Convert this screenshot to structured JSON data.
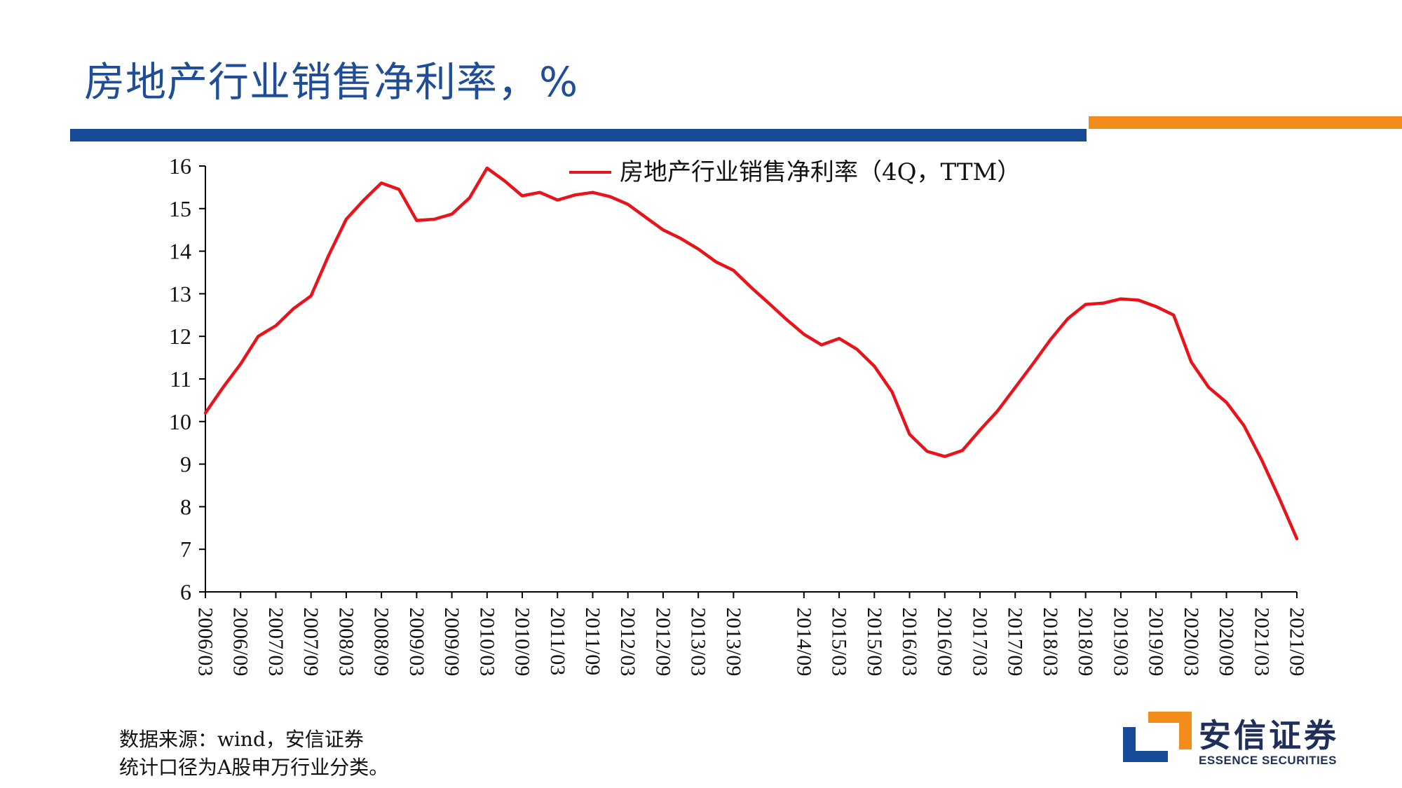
{
  "page": {
    "title": "房地产行业销售净利率，%",
    "source_line1": "数据来源：wind，安信证券",
    "source_line2": "统计口径为A股申万行业分类。",
    "logo_cn": "安信证券",
    "logo_en": "ESSENCE SECURITIES"
  },
  "colors": {
    "title": "#1f4e96",
    "blue_bar": "#174b97",
    "orange_bar": "#f28c1c",
    "series": "#e8141c",
    "axis": "#000000"
  },
  "chart_data": {
    "type": "line",
    "title": "",
    "xlabel": "",
    "ylabel": "",
    "ylim": [
      6,
      16
    ],
    "yticks": [
      6,
      7,
      8,
      9,
      10,
      11,
      12,
      13,
      14,
      15,
      16
    ],
    "grid": false,
    "legend_position": "top-right",
    "x_tick_labels": [
      "2006/03",
      "2006/09",
      "2007/03",
      "2007/09",
      "2008/03",
      "2008/09",
      "2009/03",
      "2009/09",
      "2010/03",
      "2010/09",
      "2011/03",
      "2011/09",
      "2012/03",
      "2012/09",
      "2013/03",
      "2013/09",
      "2014/09",
      "2015/03",
      "2015/09",
      "2016/03",
      "2016/09",
      "2017/03",
      "2017/09",
      "2018/03",
      "2018/09",
      "2019/03",
      "2019/09",
      "2020/03",
      "2020/09",
      "2021/03",
      "2021/09"
    ],
    "x": [
      "2006/03",
      "2006/06",
      "2006/09",
      "2006/12",
      "2007/03",
      "2007/06",
      "2007/09",
      "2007/12",
      "2008/03",
      "2008/06",
      "2008/09",
      "2008/12",
      "2009/03",
      "2009/06",
      "2009/09",
      "2009/12",
      "2010/03",
      "2010/06",
      "2010/09",
      "2010/12",
      "2011/03",
      "2011/06",
      "2011/09",
      "2011/12",
      "2012/03",
      "2012/06",
      "2012/09",
      "2012/12",
      "2013/03",
      "2013/06",
      "2013/09",
      "2013/12",
      "2014/03",
      "2014/06",
      "2014/09",
      "2014/12",
      "2015/03",
      "2015/06",
      "2015/09",
      "2015/12",
      "2016/03",
      "2016/06",
      "2016/09",
      "2016/12",
      "2017/03",
      "2017/06",
      "2017/09",
      "2017/12",
      "2018/03",
      "2018/06",
      "2018/09",
      "2018/12",
      "2019/03",
      "2019/06",
      "2019/09",
      "2019/12",
      "2020/03",
      "2020/06",
      "2020/09",
      "2020/12",
      "2021/03",
      "2021/06",
      "2021/09"
    ],
    "series": [
      {
        "name": "房地产行业销售净利率（4Q，TTM）",
        "values": [
          10.2,
          10.8,
          11.35,
          12.0,
          12.25,
          12.65,
          12.95,
          13.9,
          14.75,
          15.2,
          15.6,
          15.45,
          14.72,
          14.75,
          14.87,
          15.25,
          15.95,
          15.65,
          15.3,
          15.38,
          15.2,
          15.32,
          15.38,
          15.28,
          15.1,
          14.8,
          14.5,
          14.3,
          14.05,
          13.75,
          13.55,
          13.15,
          12.78,
          12.4,
          12.05,
          11.8,
          11.95,
          11.7,
          11.3,
          10.7,
          9.7,
          9.3,
          9.18,
          9.32,
          9.8,
          10.25,
          10.8,
          11.35,
          11.92,
          12.42,
          12.75,
          12.78,
          12.88,
          12.85,
          12.7,
          12.5,
          11.4,
          10.8,
          10.45,
          9.9,
          9.1,
          8.2,
          7.25
        ]
      }
    ]
  }
}
